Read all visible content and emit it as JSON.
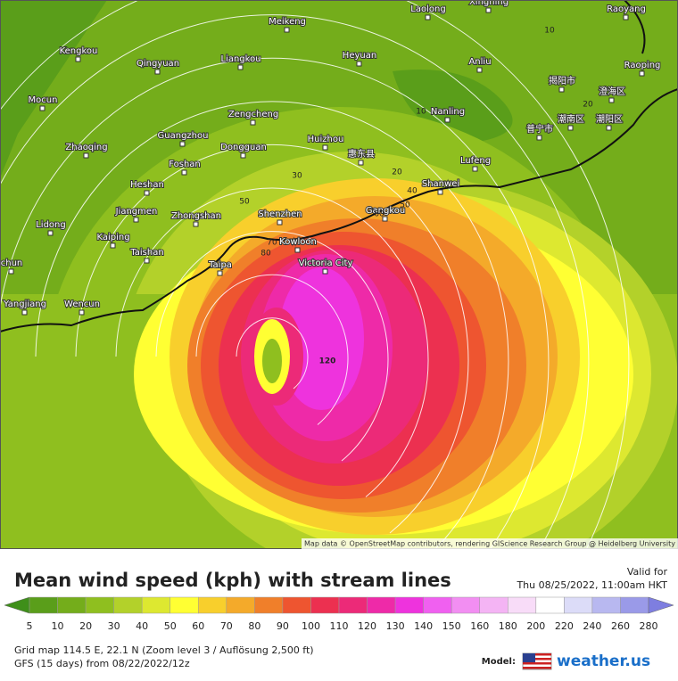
{
  "map": {
    "cities": [
      "Meikeng",
      "Laolong",
      "Xingning",
      "Raoyang",
      "Kengkou",
      "Qingyuan",
      "Liangkou",
      "Heyuan",
      "Anliu",
      "Raoping",
      "揭阳市",
      "澄海区",
      "Mocun",
      "Nanling",
      "潮南区",
      "潮阳区",
      "普宁市",
      "Zengcheng",
      "Guangzhou",
      "Huizhou",
      "Zhaoqing",
      "Dongguan",
      "惠东县",
      "Lufeng",
      "Foshan",
      "Heshan",
      "Shanwei",
      "Jiangmen",
      "Zhongshan",
      "Shenzhen",
      "Gangkou",
      "Lidong",
      "Kaiping",
      "Kowloon",
      "Taishan",
      "Victoria City",
      "Taipa",
      "chun",
      "Yangjiang",
      "Wencun"
    ],
    "contour_labels": [
      10,
      10,
      20,
      20,
      30,
      40,
      50,
      60,
      50,
      70,
      80,
      120
    ],
    "attribution": "Map data © OpenStreetMap contributors, rendering GIScience Research Group @ Heidelberg University"
  },
  "legend": {
    "title": "Mean wind speed (kph) with stream lines",
    "valid_label": "Valid for",
    "valid_time": "Thu 08/25/2022, 11:00am HKT",
    "scale_labels": [
      5,
      10,
      20,
      30,
      40,
      50,
      60,
      70,
      80,
      90,
      100,
      110,
      120,
      130,
      140,
      150,
      160,
      180,
      200,
      220,
      240,
      260,
      280
    ],
    "colors": [
      "#3f8f1a",
      "#5a9e1a",
      "#74ad1b",
      "#8fbf1f",
      "#b3d12a",
      "#dde830",
      "#ffff33",
      "#f8cf2c",
      "#f4aa2a",
      "#f07f2a",
      "#ee5530",
      "#ec3050",
      "#ec2a78",
      "#ee2aa8",
      "#ee33dd",
      "#f060f0",
      "#f28ef2",
      "#f4b4f4",
      "#f8dcf8",
      "#ffffff",
      "#dcdcf8",
      "#b8b8f0",
      "#9a9ae8",
      "#7e7ee0"
    ]
  },
  "footer": {
    "grid_info": "Grid map 114.5 E, 22.1 N (Zoom level 3 / Auflösung 2,500 ft)",
    "run_info": "GFS (15 days) from  08/22/2022/12z",
    "model_label": "Model:",
    "brand": "weather.us"
  }
}
